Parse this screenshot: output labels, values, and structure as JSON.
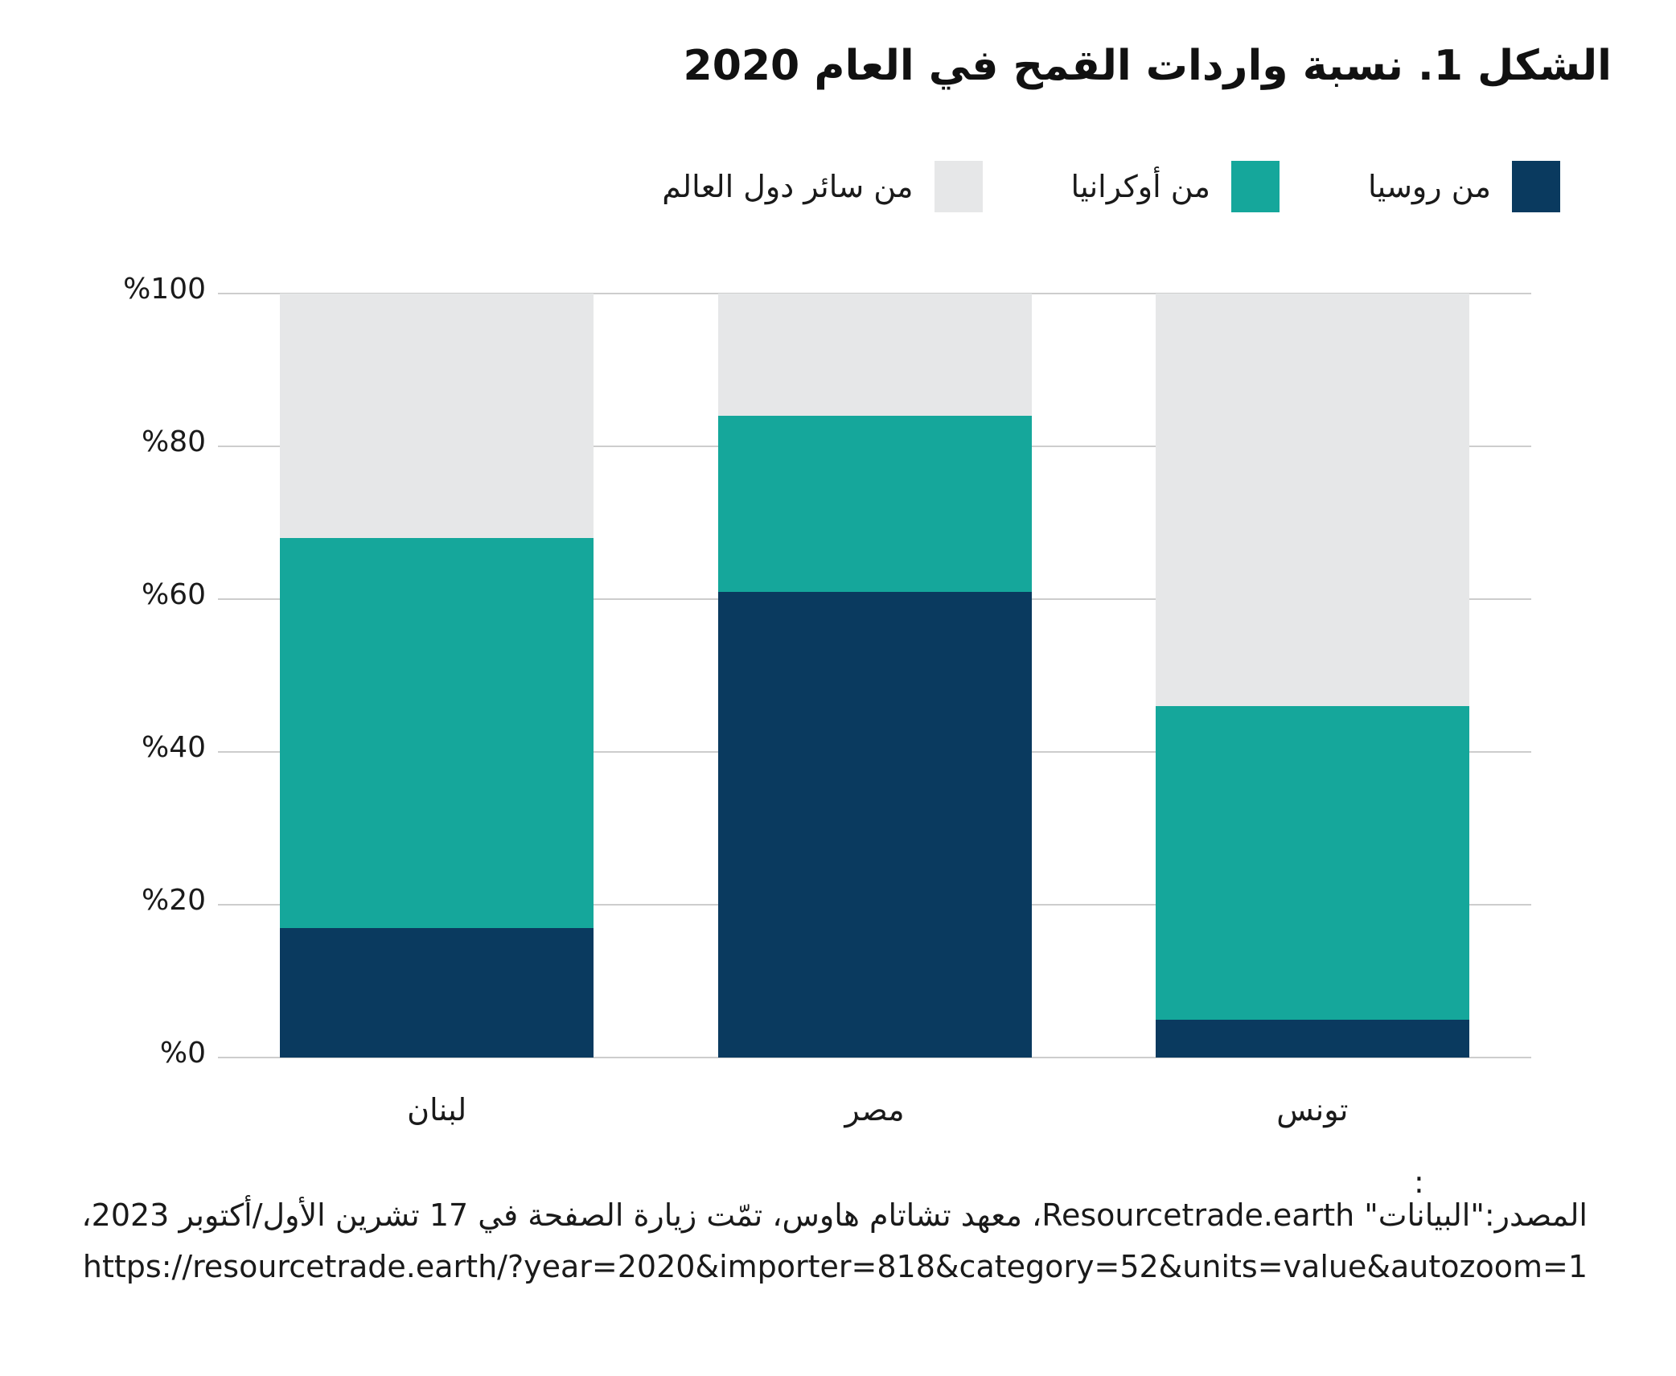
{
  "figure": {
    "title": "الشكل 1. نسبة واردات القمح في العام 2020"
  },
  "legend": {
    "items": [
      {
        "label": "من روسيا",
        "color": "#0a3a5f"
      },
      {
        "label": "من أوكرانيا",
        "color": "#15a79b"
      },
      {
        "label": "من سائر دول العالم",
        "color": "#e6e7e8"
      }
    ]
  },
  "chart_data": {
    "type": "bar",
    "stacked": true,
    "title": "الشكل 1. نسبة واردات القمح في العام 2020",
    "categories": [
      "لبنان",
      "مصر",
      "تونس"
    ],
    "series": [
      {
        "name": "من روسيا",
        "color": "#0a3a5f",
        "values": [
          17,
          61,
          5
        ]
      },
      {
        "name": "من أوكرانيا",
        "color": "#15a79b",
        "values": [
          51,
          23,
          41
        ]
      },
      {
        "name": "من سائر دول العالم",
        "color": "#e6e7e8",
        "values": [
          32,
          16,
          54
        ]
      }
    ],
    "ylim": [
      0,
      100
    ],
    "y_tick_values": [
      0,
      20,
      40,
      60,
      80,
      100
    ],
    "y_tick_labels": [
      "%0",
      "%20",
      "%40",
      "%60",
      "%80",
      "%100"
    ],
    "grid": true,
    "gridline_color": "#cdcdcd",
    "legend_position": "top-right"
  },
  "footer": {
    "colon": ":",
    "source": "المصدر:\"البيانات\" Resourcetrade.earth، معهد تشاتام هاوس، تمّت زيارة الصفحة في 17 تشرين الأول/أكتوبر 2023،",
    "url": "https://resourcetrade.earth/?year=2020&importer=818&category=52&units=value&autozoom=1"
  }
}
